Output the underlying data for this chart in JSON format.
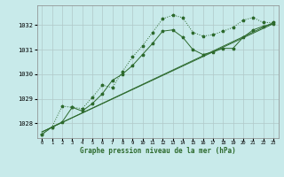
{
  "background_color": "#c8eaea",
  "grid_color": "#b0c8c8",
  "line_color": "#2d6a2d",
  "title": "Graphe pression niveau de la mer (hPa)",
  "xlabel_ticks": [
    0,
    1,
    2,
    3,
    4,
    5,
    6,
    7,
    8,
    9,
    10,
    11,
    12,
    13,
    14,
    15,
    16,
    17,
    18,
    19,
    20,
    21,
    22,
    23
  ],
  "yticks": [
    1028,
    1029,
    1030,
    1031,
    1032
  ],
  "ylim": [
    1027.4,
    1032.8
  ],
  "xlim": [
    -0.5,
    23.5
  ],
  "series_wavy_x": [
    0,
    1,
    2,
    3,
    4,
    5,
    6,
    7,
    8,
    9,
    10,
    11,
    12,
    13,
    14,
    15,
    16,
    17,
    18,
    19,
    20,
    21,
    22,
    23
  ],
  "series_wavy_y": [
    1027.55,
    1027.85,
    1028.7,
    1028.65,
    1028.6,
    1029.05,
    1029.55,
    1029.45,
    1030.1,
    1030.7,
    1031.15,
    1031.7,
    1032.25,
    1032.4,
    1032.3,
    1031.7,
    1031.55,
    1031.6,
    1031.75,
    1031.9,
    1032.2,
    1032.3,
    1032.1,
    1032.1
  ],
  "series_smooth_x": [
    0,
    1,
    2,
    3,
    4,
    5,
    6,
    7,
    8,
    9,
    10,
    11,
    12,
    13,
    14,
    15,
    16,
    17,
    18,
    19,
    20,
    21,
    22,
    23
  ],
  "series_smooth_y": [
    1027.55,
    1027.85,
    1028.05,
    1028.65,
    1028.5,
    1028.8,
    1029.2,
    1029.75,
    1030.0,
    1030.35,
    1030.8,
    1031.25,
    1031.75,
    1031.8,
    1031.5,
    1031.0,
    1030.8,
    1030.9,
    1031.05,
    1031.05,
    1031.5,
    1031.8,
    1031.95,
    1032.05
  ],
  "trend1_x": [
    0,
    23
  ],
  "trend1_y": [
    1027.65,
    1032.05
  ],
  "trend2_x": [
    0,
    23
  ],
  "trend2_y": [
    1027.65,
    1032.1
  ]
}
